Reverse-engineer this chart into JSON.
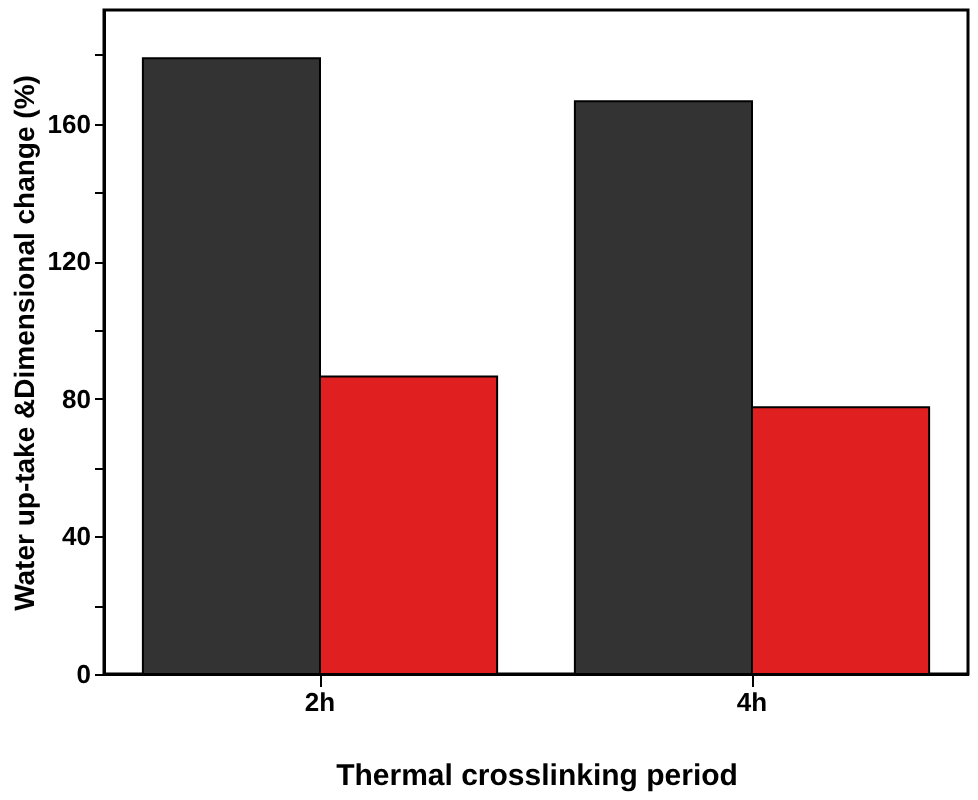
{
  "chart_data": {
    "type": "bar",
    "xlabel": "Thermal crosslinking period",
    "ylabel": "Water up-take &Dimensional change (%)",
    "categories": [
      "2h",
      "4h"
    ],
    "series": [
      {
        "color": "#333333",
        "values": [
          179,
          166.5
        ]
      },
      {
        "color": "#e02020",
        "values": [
          86.5,
          77.5
        ]
      }
    ],
    "ylim": [
      0,
      193
    ],
    "yticks": [
      0,
      {
        "value": 20,
        "label": null
      },
      40,
      {
        "value": 60,
        "label": null
      },
      80,
      {
        "value": 100,
        "label": null
      },
      120,
      {
        "value": 140,
        "label": null
      },
      160,
      {
        "value": 180,
        "label": null
      }
    ],
    "grid": false,
    "legend": false
  }
}
